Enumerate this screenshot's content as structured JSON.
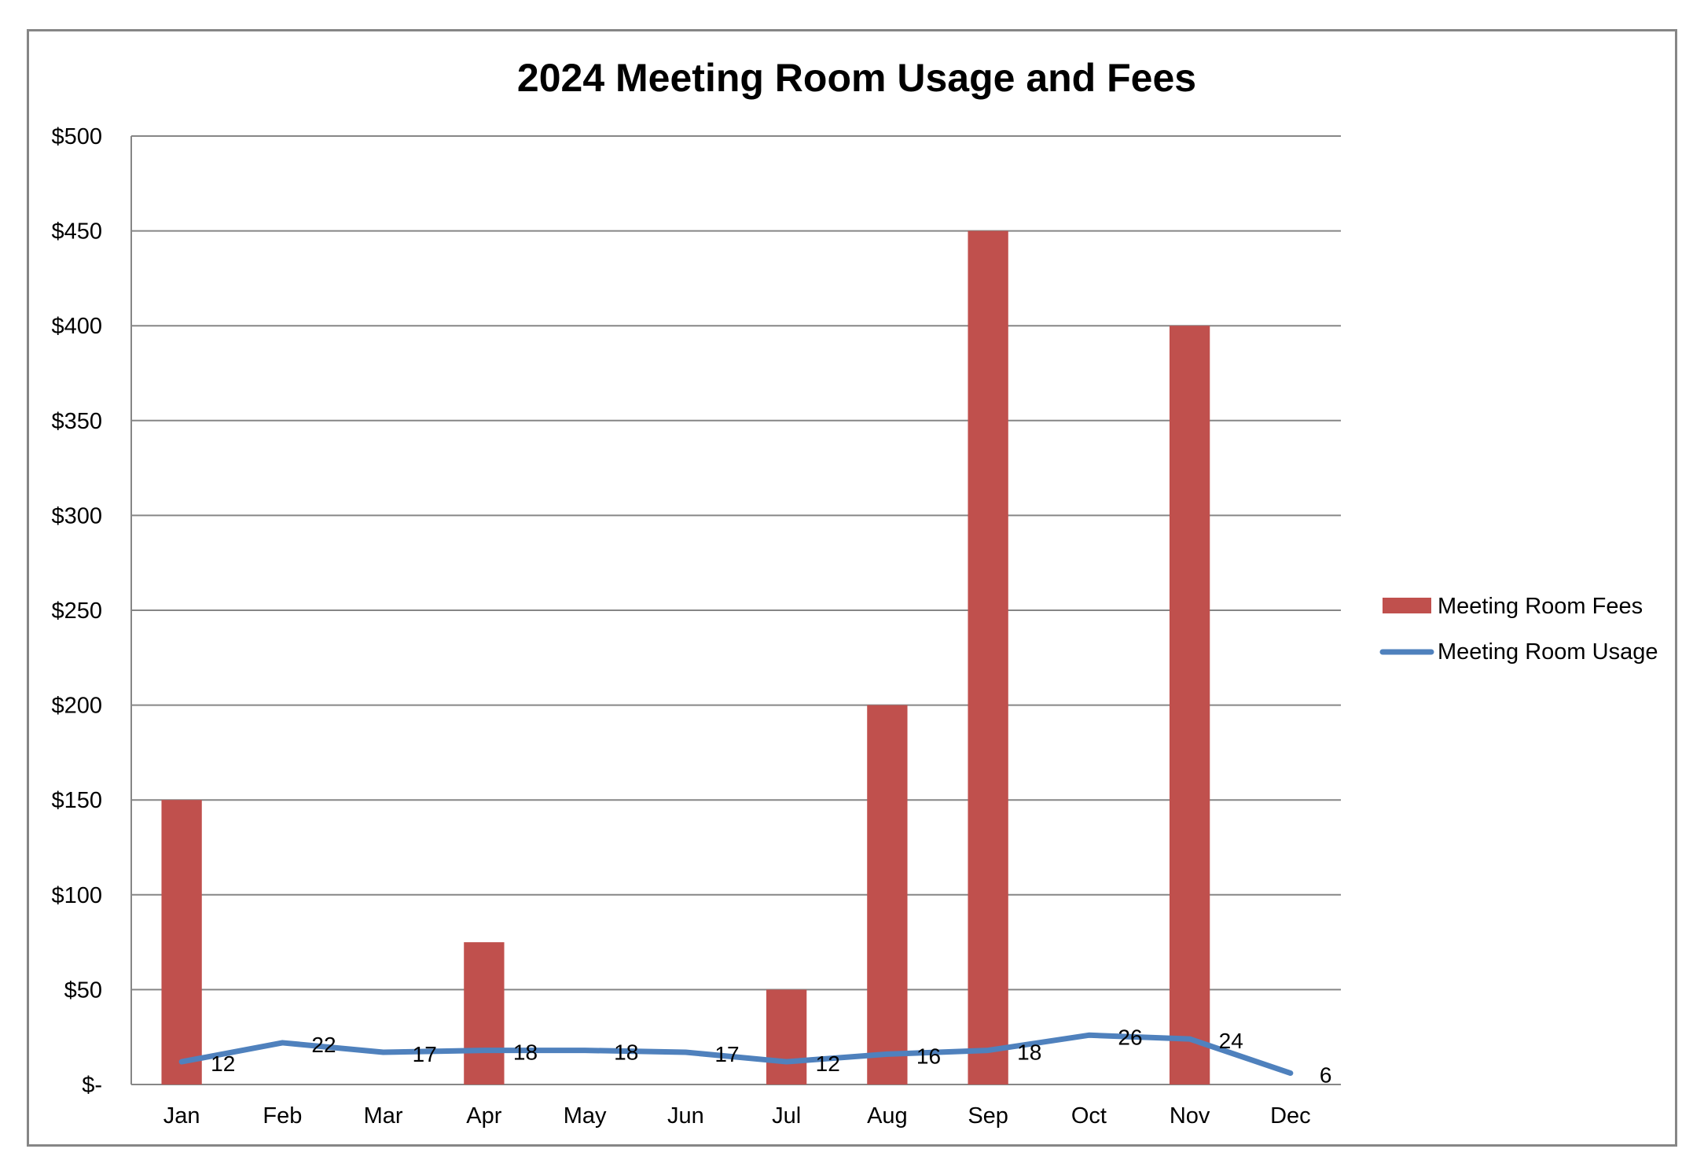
{
  "chart_data": {
    "type": "bar",
    "title": "2024 Meeting Room Usage and Fees",
    "categories": [
      "Jan",
      "Feb",
      "Mar",
      "Apr",
      "May",
      "Jun",
      "Jul",
      "Aug",
      "Sep",
      "Oct",
      "Nov",
      "Dec"
    ],
    "ylim": [
      0,
      500
    ],
    "y_ticks": [
      0,
      50,
      100,
      150,
      200,
      250,
      300,
      350,
      400,
      450,
      500
    ],
    "y_tick_labels": [
      "$-",
      "$50",
      "$100",
      "$150",
      "$200",
      "$250",
      "$300",
      "$350",
      "$400",
      "$450",
      "$500"
    ],
    "grid": true,
    "legend_position": "right",
    "series": [
      {
        "name": "Meeting Room Fees",
        "type": "bar",
        "color": "#C0504D",
        "values": [
          150,
          0,
          0,
          75,
          0,
          0,
          50,
          200,
          450,
          0,
          400,
          0
        ]
      },
      {
        "name": "Meeting Room Usage",
        "type": "line",
        "color": "#4F81BD",
        "values": [
          12,
          22,
          17,
          18,
          18,
          17,
          12,
          16,
          18,
          26,
          24,
          6
        ],
        "data_labels": [
          "12",
          "22",
          "17",
          "18",
          "18",
          "17",
          "12",
          "16",
          "18",
          "26",
          "24",
          "6"
        ]
      }
    ]
  }
}
